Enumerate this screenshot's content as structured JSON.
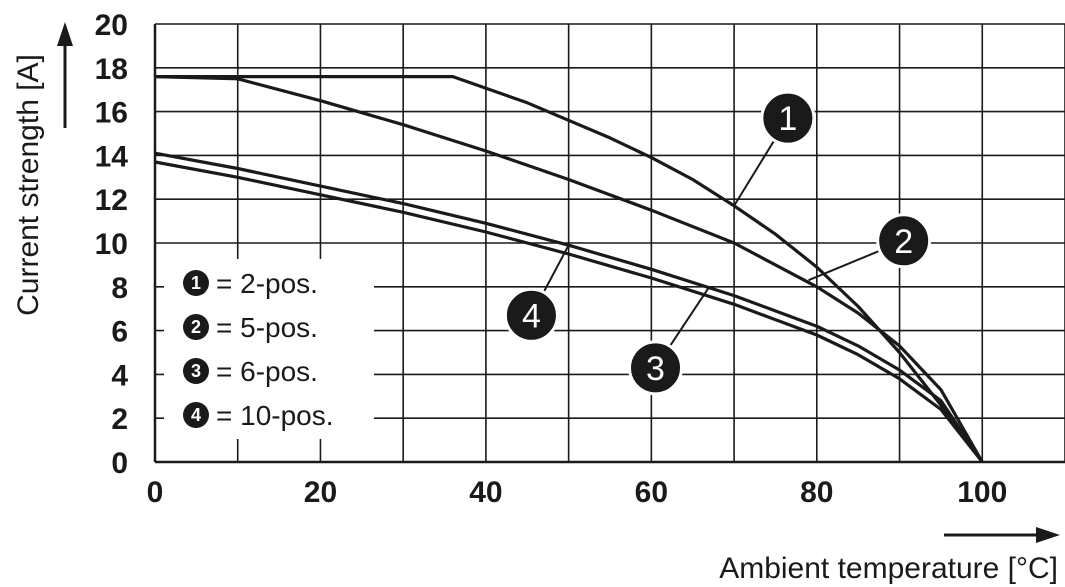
{
  "chart_data": {
    "type": "line",
    "title": "",
    "xlabel": "Ambient temperature [°C]",
    "ylabel": "Current strength [A]",
    "xlim": [
      0,
      110
    ],
    "ylim": [
      0,
      20
    ],
    "x_ticks": [
      "0",
      "20",
      "40",
      "60",
      "80",
      "100"
    ],
    "y_ticks": [
      "0",
      "2",
      "4",
      "6",
      "8",
      "10",
      "12",
      "14",
      "16",
      "18",
      "20"
    ],
    "grid": true,
    "legend_placement": "bottom-left",
    "series": [
      {
        "marker": "1",
        "name": "= 2-pos.",
        "x": [
          0,
          36,
          45,
          55,
          60,
          65,
          70,
          75,
          80,
          85,
          90,
          95,
          100
        ],
        "y": [
          17.6,
          17.6,
          16.4,
          14.8,
          13.9,
          12.9,
          11.7,
          10.4,
          8.9,
          7.1,
          5.0,
          2.6,
          0
        ]
      },
      {
        "marker": "2",
        "name": "= 5-pos.",
        "x": [
          0,
          10,
          20,
          30,
          40,
          50,
          60,
          70,
          80,
          85,
          90,
          95,
          100
        ],
        "y": [
          17.6,
          17.5,
          16.5,
          15.4,
          14.2,
          12.9,
          11.5,
          10.0,
          8.0,
          6.8,
          5.3,
          3.3,
          0
        ]
      },
      {
        "marker": "3",
        "name": "= 6-pos.",
        "x": [
          0,
          10,
          20,
          30,
          40,
          50,
          60,
          70,
          80,
          85,
          90,
          95,
          100
        ],
        "y": [
          13.7,
          13.0,
          12.2,
          11.4,
          10.5,
          9.5,
          8.4,
          7.2,
          5.8,
          4.9,
          3.8,
          2.4,
          0
        ]
      },
      {
        "marker": "4",
        "name": "= 10-pos.",
        "x": [
          0,
          10,
          20,
          30,
          40,
          50,
          60,
          70,
          80,
          85,
          90,
          95,
          100
        ],
        "y": [
          14.1,
          13.4,
          12.6,
          11.8,
          10.9,
          9.9,
          8.8,
          7.6,
          6.2,
          5.3,
          4.2,
          2.8,
          0
        ]
      }
    ],
    "callouts": [
      {
        "label": "1",
        "anchor": [
          70,
          11.7
        ],
        "at": [
          76.5,
          15.7
        ]
      },
      {
        "label": "2",
        "anchor": [
          79,
          8.3
        ],
        "at": [
          90.5,
          10.1
        ]
      },
      {
        "label": "3",
        "anchor": [
          67,
          8.0
        ],
        "at": [
          60.5,
          4.3
        ]
      },
      {
        "label": "4",
        "anchor": [
          50,
          9.9
        ],
        "at": [
          45.5,
          6.7
        ]
      }
    ],
    "colors": {
      "line": "#1a1a1a",
      "grid": "#1a1a1a",
      "marker_fill": "#1a1a1a",
      "background": "#ffffff"
    }
  }
}
